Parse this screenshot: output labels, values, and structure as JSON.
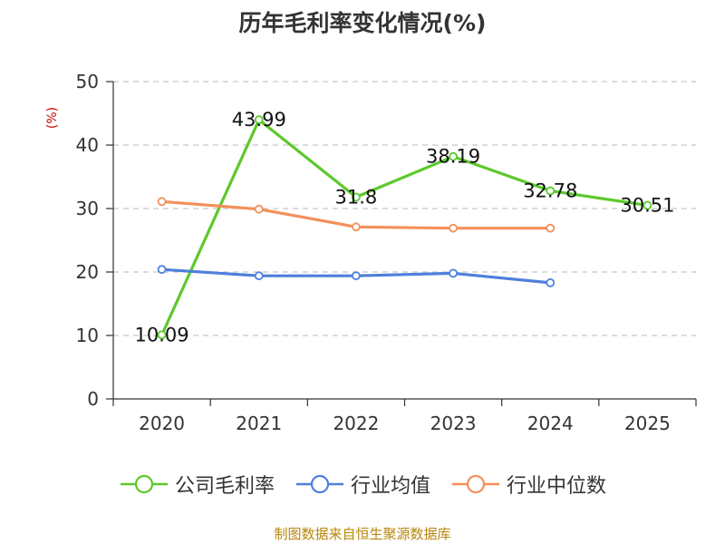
{
  "title": "历年毛利率变化情况(%)",
  "source": "制图数据来自恒生聚源数据库",
  "chart_data": {
    "type": "line",
    "unit_label": "(%)",
    "categories": [
      "2020",
      "2021",
      "2022",
      "2023",
      "2024",
      "2025"
    ],
    "ylim": [
      0,
      50
    ],
    "yticks": [
      0,
      10,
      20,
      30,
      40,
      50
    ],
    "grid": true,
    "legend_position": "bottom",
    "series": [
      {
        "name": "公司毛利率",
        "color": "#5cc92b",
        "values": [
          10.09,
          43.99,
          31.8,
          38.19,
          32.78,
          30.51
        ],
        "labels": [
          "10.09",
          "43.99",
          "31.8",
          "38.19",
          "32.78",
          "30.51"
        ],
        "show_labels": true
      },
      {
        "name": "行业均值",
        "color": "#4f7fdc",
        "values": [
          20.4,
          19.4,
          19.4,
          19.8,
          18.3,
          null
        ],
        "show_labels": false
      },
      {
        "name": "行业中位数",
        "color": "#f4905a",
        "values": [
          31.1,
          29.9,
          27.1,
          26.9,
          26.9,
          null
        ],
        "show_labels": false
      }
    ]
  }
}
